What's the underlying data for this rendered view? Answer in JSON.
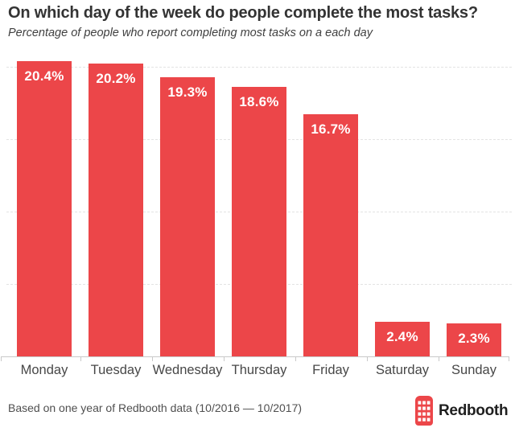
{
  "header": {
    "title": "On which day of the week do people complete the most tasks?",
    "subtitle": "Percentage of people who report completing most tasks on a each day"
  },
  "chart_data": {
    "type": "bar",
    "title": "On which day of the week do people complete the most tasks?",
    "subtitle": "Percentage of people who report completing most tasks on a each day",
    "categories": [
      "Monday",
      "Tuesday",
      "Wednesday",
      "Thursday",
      "Friday",
      "Saturday",
      "Sunday"
    ],
    "values": [
      20.4,
      20.2,
      19.3,
      18.6,
      16.7,
      2.4,
      2.3
    ],
    "value_labels": [
      "20.4%",
      "20.2%",
      "19.3%",
      "18.6%",
      "16.7%",
      "2.4%",
      "2.3%"
    ],
    "xlabel": "",
    "ylabel": "",
    "ylim": [
      0,
      21.5
    ],
    "gridline_values": [
      5,
      10,
      15,
      20
    ],
    "grid": "horizontal-dashed",
    "legend": "none",
    "bar_color": "#ec4649",
    "value_label_color": "#ffffff"
  },
  "footer": {
    "source_text": "Based on one year of Redbooth data (10/2016 — 10/2017)",
    "brand": "Redbooth"
  },
  "colors": {
    "background": "#ffffff",
    "bar": "#ec4649",
    "title": "#333333",
    "subtitle": "#3f3f3f",
    "axis_label": "#474747",
    "gridline": "#e3e3e3",
    "axis_line": "#c9c9c9",
    "value_label": "#ffffff",
    "footer_text": "#4f4f4f",
    "logo_red": "#ec4649",
    "wordmark": "#1f1f1f"
  }
}
